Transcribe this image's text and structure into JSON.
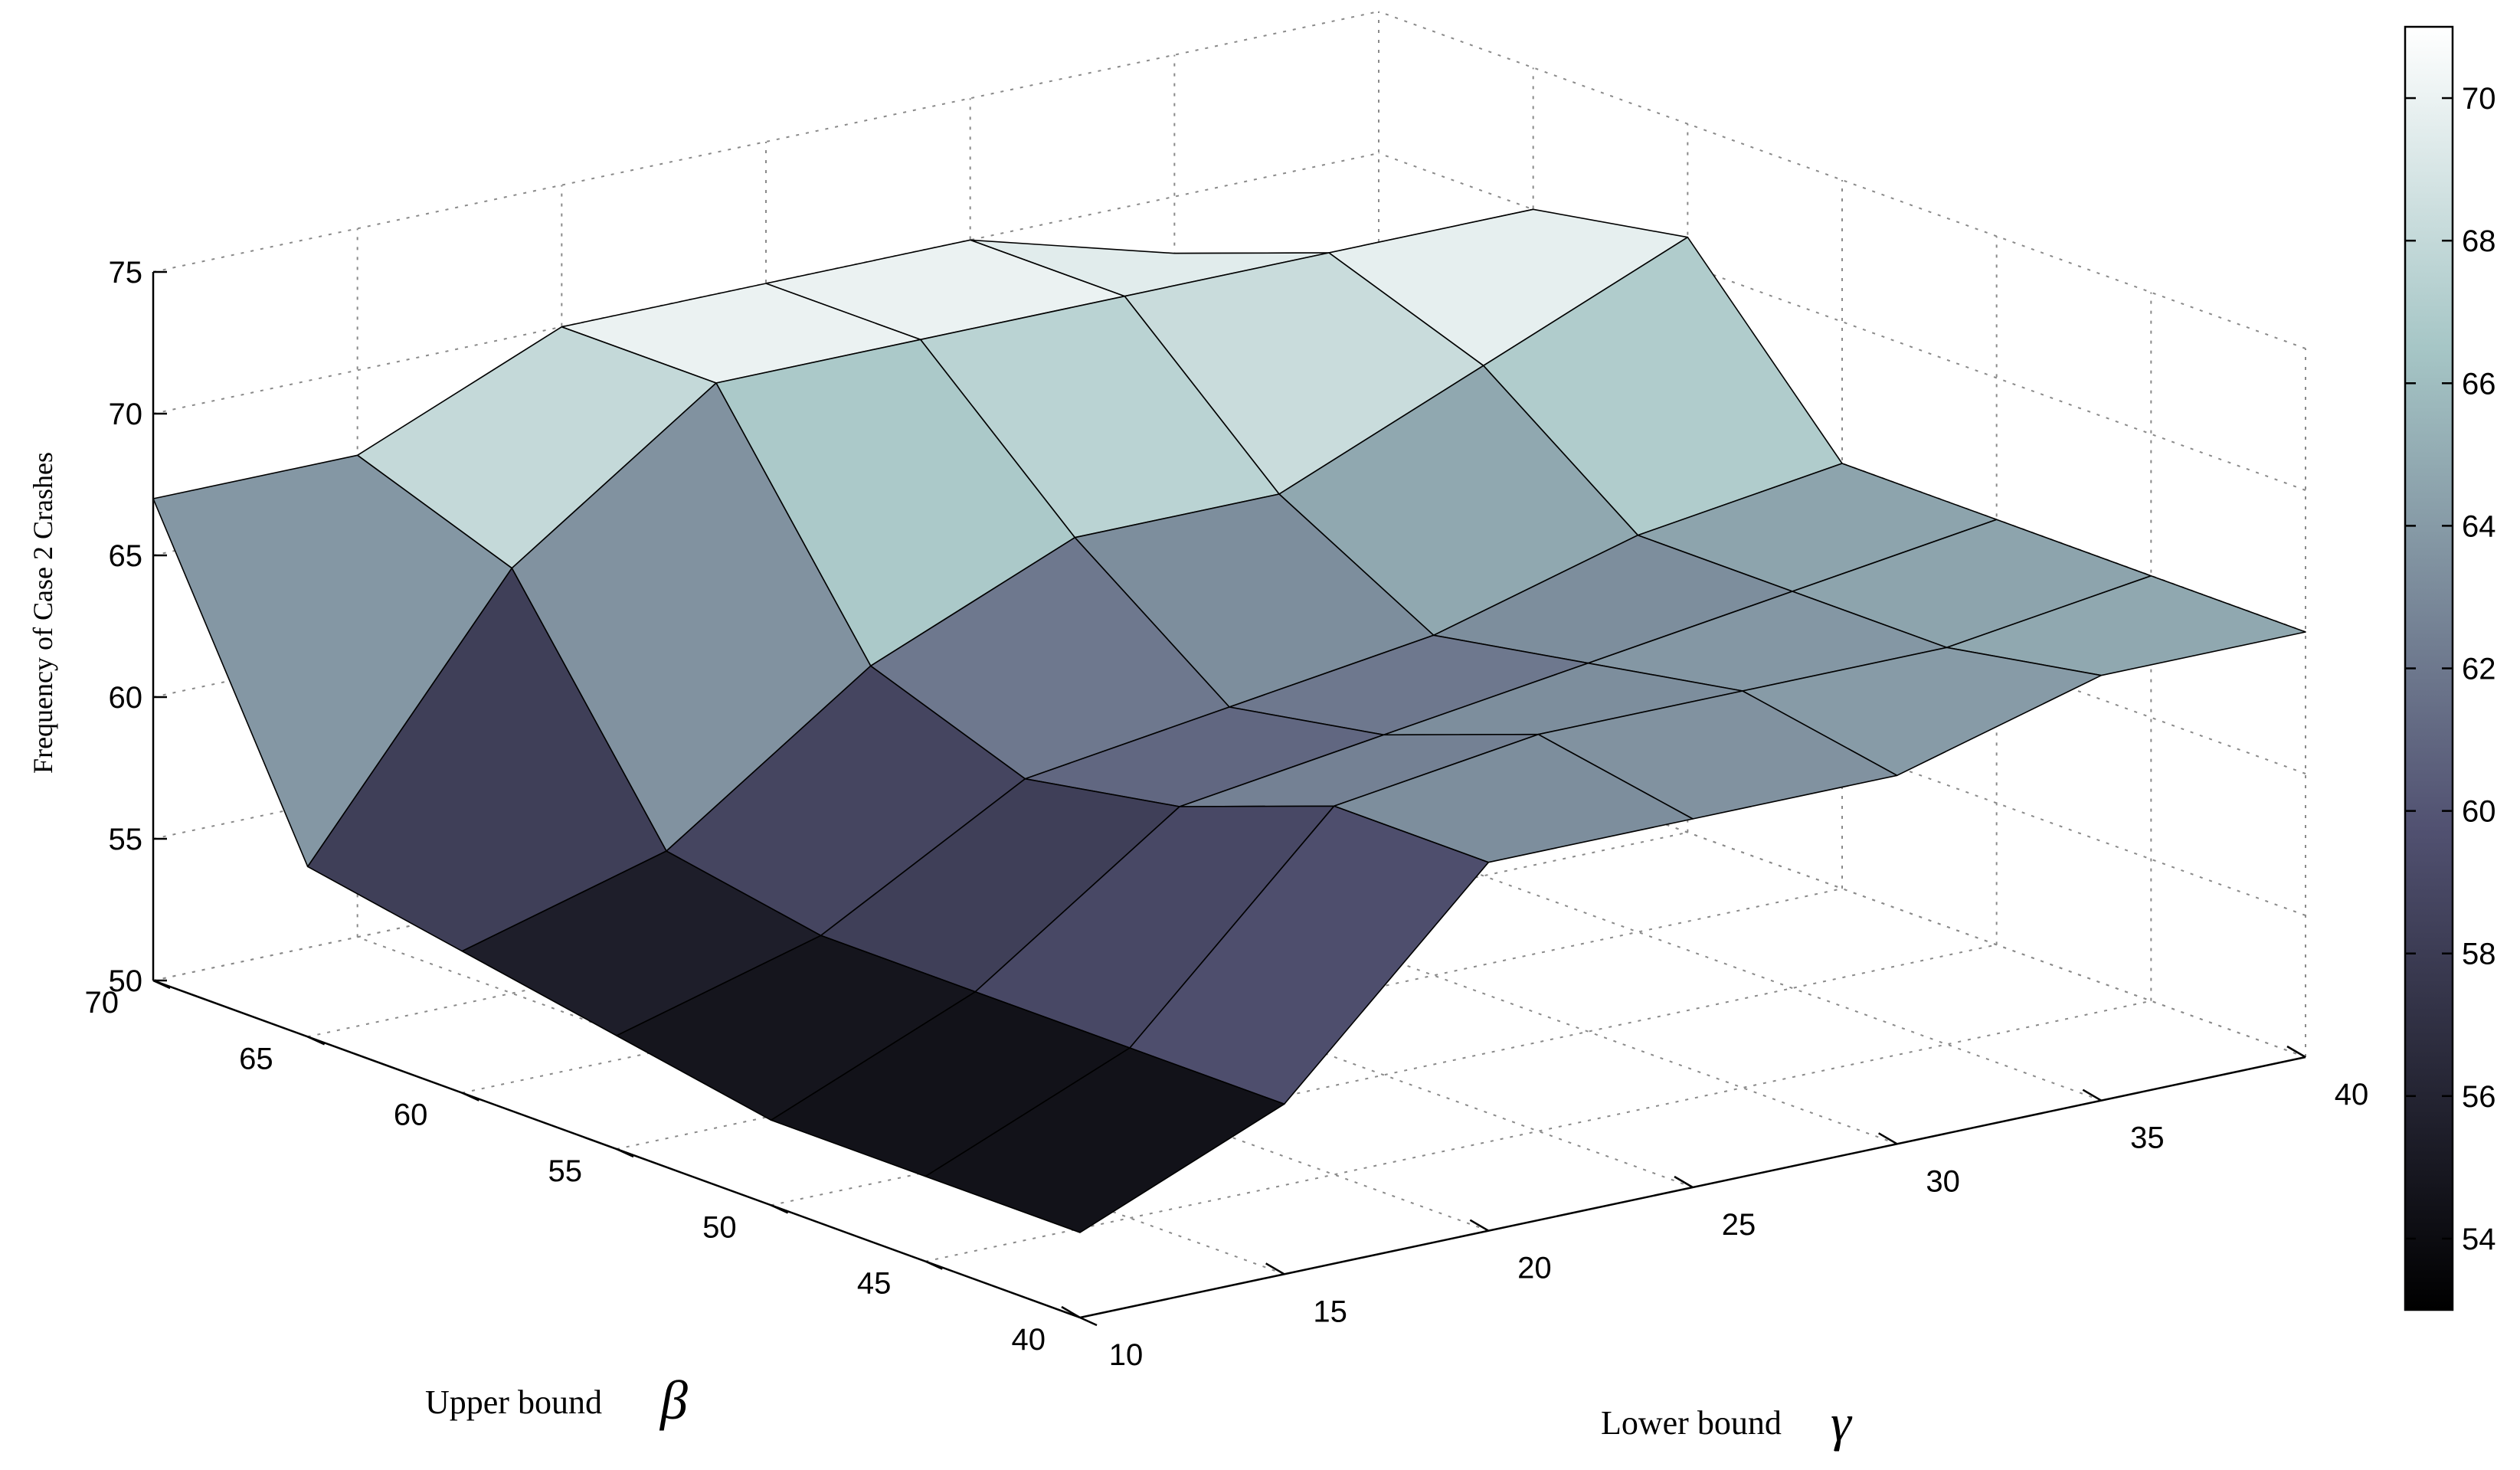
{
  "chart_data": {
    "type": "surface3d",
    "zlabel": "Frequency of Case 2 Crashes",
    "xlabel_text": "Lower bound",
    "xlabel_symbol": "γ",
    "ylabel_text": "Upper bound",
    "ylabel_symbol": "β",
    "x_ticks": [
      10,
      15,
      20,
      25,
      30,
      35,
      40
    ],
    "y_ticks": [
      40,
      45,
      50,
      55,
      60,
      65,
      70
    ],
    "z_ticks": [
      50,
      55,
      60,
      65,
      70,
      75
    ],
    "xlim": [
      10,
      40
    ],
    "ylim": [
      40,
      70
    ],
    "zlim": [
      50,
      75
    ],
    "colormap": "bone",
    "colorbar": {
      "ticks": [
        54,
        56,
        58,
        60,
        62,
        64,
        66,
        68,
        70
      ],
      "clim": [
        53,
        71
      ]
    },
    "grid": true,
    "x": [
      10,
      15,
      20,
      25,
      30,
      35,
      40
    ],
    "y": [
      40,
      45,
      50,
      55,
      60,
      65,
      70
    ],
    "z": [
      [
        53,
        56,
        63,
        63,
        63,
        65,
        65
      ],
      [
        53,
        56,
        63,
        64,
        64,
        64,
        65
      ],
      [
        53,
        56,
        61,
        62,
        63,
        64,
        65
      ],
      [
        54,
        56,
        60,
        61,
        62,
        64,
        65
      ],
      [
        55,
        57,
        62,
        65,
        65,
        68,
        71
      ],
      [
        56,
        65,
        70,
        70,
        70,
        70,
        70
      ],
      [
        67,
        67,
        70,
        70,
        70,
        68,
        65
      ]
    ]
  }
}
